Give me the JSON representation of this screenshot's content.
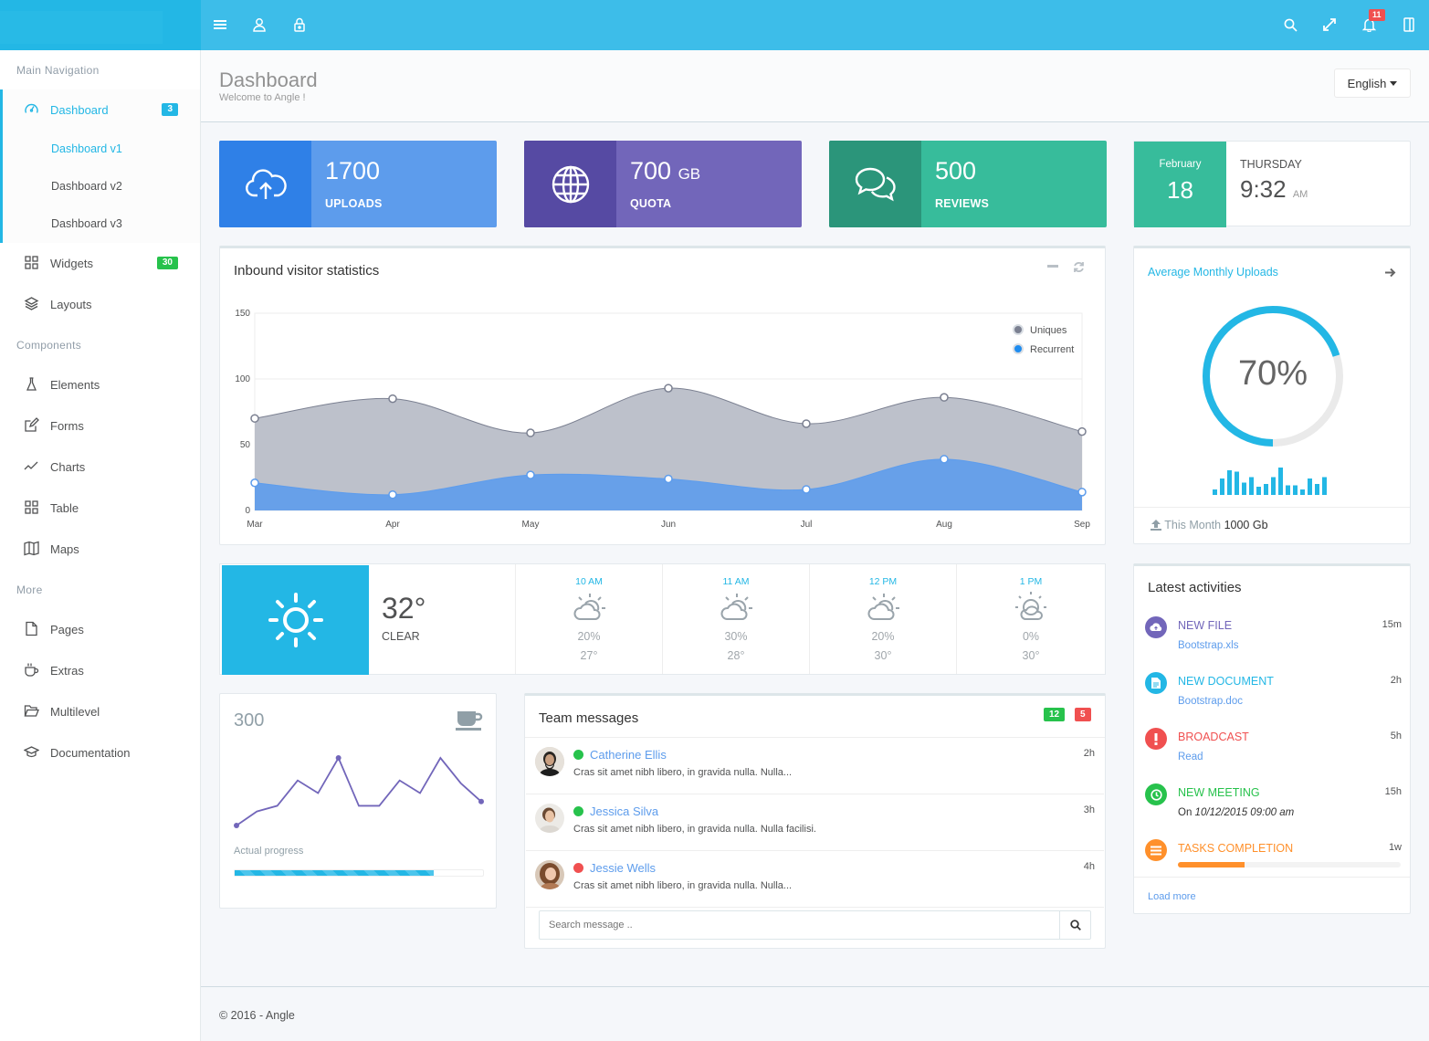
{
  "colors": {
    "primary": "#5d9cec",
    "purple": "#7266ba",
    "green": "#37bc9b",
    "info": "#23b7e5",
    "danger": "#f05050",
    "success": "#27c24c",
    "warning": "#ff902b"
  },
  "topbar": {
    "notification_count": "11"
  },
  "sidebar": {
    "heading_main": "Main Navigation",
    "heading_components": "Components",
    "heading_more": "More",
    "dashboard": {
      "label": "Dashboard",
      "badge": "3"
    },
    "sub": [
      "Dashboard v1",
      "Dashboard v2",
      "Dashboard v3"
    ],
    "widgets": {
      "label": "Widgets",
      "badge": "30"
    },
    "layouts": "Layouts",
    "components": [
      "Elements",
      "Forms",
      "Charts",
      "Table",
      "Maps"
    ],
    "more": [
      "Pages",
      "Extras",
      "Multilevel",
      "Documentation"
    ]
  },
  "header": {
    "title": "Dashboard",
    "subtitle": "Welcome to Angle !",
    "language": "English"
  },
  "stats": [
    {
      "value": "1700",
      "unit": "",
      "label": "UPLOADS"
    },
    {
      "value": "700",
      "unit": "GB",
      "label": "QUOTA"
    },
    {
      "value": "500",
      "unit": "",
      "label": "REVIEWS"
    }
  ],
  "date_widget": {
    "month": "February",
    "day": "18",
    "weekday": "THURSDAY",
    "time": "9:32",
    "ampm": "AM"
  },
  "visitor_chart": {
    "title": "Inbound visitor statistics"
  },
  "chart_data": {
    "type": "area",
    "title": "Inbound visitor statistics",
    "categories": [
      "Mar",
      "Apr",
      "May",
      "Jun",
      "Jul",
      "Aug",
      "Sep"
    ],
    "series": [
      {
        "name": "Uniques",
        "values": [
          70,
          85,
          59,
          93,
          66,
          86,
          60
        ]
      },
      {
        "name": "Recurrent",
        "values": [
          21,
          12,
          27,
          24,
          16,
          39,
          14
        ]
      }
    ],
    "yticks": [
      "0",
      "50",
      "100",
      "150"
    ],
    "ylim": [
      0,
      150
    ],
    "legend": "top-right"
  },
  "avg_uploads": {
    "title": "Average Monthly Uploads",
    "percent_label": "70%",
    "percent": 70,
    "footer_label": "This Month",
    "footer_value": "1000 Gb",
    "bars": [
      4,
      12,
      18,
      17,
      9,
      13,
      6,
      8,
      13,
      20,
      7,
      7,
      4,
      12,
      8,
      13
    ]
  },
  "weather": {
    "current_temp": "32°",
    "current_cond": "CLEAR",
    "forecast": [
      {
        "time": "10 AM",
        "pct": "20%",
        "deg": "27°"
      },
      {
        "time": "11 AM",
        "pct": "30%",
        "deg": "28°"
      },
      {
        "time": "12 PM",
        "pct": "20%",
        "deg": "30°"
      },
      {
        "time": "1 PM",
        "pct": "0%",
        "deg": "30°"
      }
    ]
  },
  "progress_widget": {
    "value": "300",
    "label": "Actual progress",
    "progress": 80,
    "line": [
      10,
      20,
      24,
      42,
      33,
      58,
      24,
      24,
      42,
      33,
      58,
      40,
      27
    ]
  },
  "team_messages": {
    "title": "Team messages",
    "badge_green": "12",
    "badge_red": "5",
    "items": [
      {
        "name": "Catherine Ellis",
        "text": "Cras sit amet nibh libero, in gravida nulla. Nulla...",
        "time": "2h",
        "status": "#27c24c"
      },
      {
        "name": "Jessica Silva",
        "text": "Cras sit amet nibh libero, in gravida nulla. Nulla facilisi.",
        "time": "3h",
        "status": "#27c24c"
      },
      {
        "name": "Jessie Wells",
        "text": "Cras sit amet nibh libero, in gravida nulla. Nulla...",
        "time": "4h",
        "status": "#f05050"
      }
    ],
    "search_placeholder": "Search message .."
  },
  "activities": {
    "title": "Latest activities",
    "load_more": "Load more",
    "items": [
      {
        "title": "NEW FILE",
        "sub": "Bootstrap.xls",
        "time": "15m"
      },
      {
        "title": "NEW DOCUMENT",
        "sub": "Bootstrap.doc",
        "time": "2h"
      },
      {
        "title": "BROADCAST",
        "sub": "Read",
        "time": "5h"
      },
      {
        "title": "NEW MEETING",
        "sub_prefix": "On ",
        "sub_em": "10/12/2015 09:00 am",
        "time": "15h"
      },
      {
        "title": "TASKS COMPLETION",
        "time": "1w",
        "progress": 30
      }
    ]
  },
  "footer": {
    "text": "© 2016 - Angle"
  }
}
